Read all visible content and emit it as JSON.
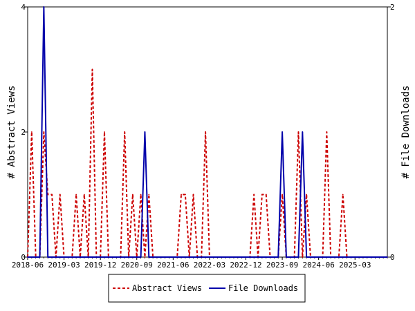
{
  "chart_data": {
    "type": "line",
    "x_start": "2018-06",
    "x_end": "2025-11",
    "xticks": [
      "2018-06",
      "2019-03",
      "2019-12",
      "2020-09",
      "2021-06",
      "2022-03",
      "2022-12",
      "2023-09",
      "2024-06",
      "2025-03"
    ],
    "ylabel_left": "# Abstract Views",
    "ylabel_right": "# File Downloads",
    "yticks_left": [
      0,
      2,
      4
    ],
    "yticks_right": [
      0,
      2
    ],
    "ylim_left": [
      0,
      4
    ],
    "ylim_right": [
      0,
      2
    ],
    "legend_position": "bottom-center",
    "grid": false,
    "series": [
      {
        "name": "Abstract Views",
        "axis": "left",
        "color": "#cc0000",
        "dash": "dashed",
        "points": [
          [
            "2018-06",
            0
          ],
          [
            "2018-07",
            2
          ],
          [
            "2018-08",
            0
          ],
          [
            "2018-09",
            0
          ],
          [
            "2018-10",
            2
          ],
          [
            "2018-11",
            1
          ],
          [
            "2018-12",
            1
          ],
          [
            "2019-01",
            0
          ],
          [
            "2019-02",
            1
          ],
          [
            "2019-03",
            0
          ],
          [
            "2019-04",
            0
          ],
          [
            "2019-05",
            0
          ],
          [
            "2019-06",
            1
          ],
          [
            "2019-07",
            0
          ],
          [
            "2019-08",
            1
          ],
          [
            "2019-09",
            0
          ],
          [
            "2019-10",
            3
          ],
          [
            "2019-11",
            0
          ],
          [
            "2019-12",
            0
          ],
          [
            "2020-01",
            2
          ],
          [
            "2020-02",
            0
          ],
          [
            "2020-03",
            0
          ],
          [
            "2020-04",
            0
          ],
          [
            "2020-05",
            0
          ],
          [
            "2020-06",
            2
          ],
          [
            "2020-07",
            0
          ],
          [
            "2020-08",
            1
          ],
          [
            "2020-09",
            0
          ],
          [
            "2020-10",
            1
          ],
          [
            "2020-11",
            0
          ],
          [
            "2020-12",
            1
          ],
          [
            "2021-01",
            0
          ],
          [
            "2021-02",
            0
          ],
          [
            "2021-03",
            0
          ],
          [
            "2021-04",
            0
          ],
          [
            "2021-05",
            0
          ],
          [
            "2021-06",
            0
          ],
          [
            "2021-07",
            0
          ],
          [
            "2021-08",
            1
          ],
          [
            "2021-09",
            1
          ],
          [
            "2021-10",
            0
          ],
          [
            "2021-11",
            1
          ],
          [
            "2021-12",
            0
          ],
          [
            "2022-01",
            0
          ],
          [
            "2022-02",
            2
          ],
          [
            "2022-03",
            0
          ],
          [
            "2022-04",
            0
          ],
          [
            "2022-05",
            0
          ],
          [
            "2022-06",
            0
          ],
          [
            "2022-07",
            0
          ],
          [
            "2022-08",
            0
          ],
          [
            "2022-09",
            0
          ],
          [
            "2022-10",
            0
          ],
          [
            "2022-11",
            0
          ],
          [
            "2022-12",
            0
          ],
          [
            "2023-01",
            0
          ],
          [
            "2023-02",
            1
          ],
          [
            "2023-03",
            0
          ],
          [
            "2023-04",
            1
          ],
          [
            "2023-05",
            1
          ],
          [
            "2023-06",
            0
          ],
          [
            "2023-07",
            0
          ],
          [
            "2023-08",
            0
          ],
          [
            "2023-09",
            1
          ],
          [
            "2023-10",
            0
          ],
          [
            "2023-11",
            0
          ],
          [
            "2023-12",
            0
          ],
          [
            "2024-01",
            2
          ],
          [
            "2024-02",
            0
          ],
          [
            "2024-03",
            1
          ],
          [
            "2024-04",
            0
          ],
          [
            "2024-05",
            0
          ],
          [
            "2024-06",
            0
          ],
          [
            "2024-07",
            0
          ],
          [
            "2024-08",
            2
          ],
          [
            "2024-09",
            0
          ],
          [
            "2024-10",
            0
          ],
          [
            "2024-11",
            0
          ],
          [
            "2024-12",
            1
          ],
          [
            "2025-01",
            0
          ],
          [
            "2025-02",
            0
          ],
          [
            "2025-03",
            0
          ],
          [
            "2025-04",
            0
          ],
          [
            "2025-05",
            0
          ],
          [
            "2025-06",
            0
          ],
          [
            "2025-07",
            0
          ],
          [
            "2025-08",
            0
          ],
          [
            "2025-09",
            0
          ],
          [
            "2025-10",
            0
          ],
          [
            "2025-11",
            0
          ]
        ]
      },
      {
        "name": "File Downloads",
        "axis": "right",
        "color": "#0000aa",
        "dash": "solid",
        "points": [
          [
            "2018-06",
            0
          ],
          [
            "2018-07",
            0
          ],
          [
            "2018-08",
            0
          ],
          [
            "2018-09",
            0
          ],
          [
            "2018-10",
            2
          ],
          [
            "2018-11",
            0
          ],
          [
            "2018-12",
            0
          ],
          [
            "2019-01",
            0
          ],
          [
            "2019-02",
            0
          ],
          [
            "2019-03",
            0
          ],
          [
            "2019-04",
            0
          ],
          [
            "2019-05",
            0
          ],
          [
            "2019-06",
            0
          ],
          [
            "2019-07",
            0
          ],
          [
            "2019-08",
            0
          ],
          [
            "2019-09",
            0
          ],
          [
            "2019-10",
            0
          ],
          [
            "2019-11",
            0
          ],
          [
            "2019-12",
            0
          ],
          [
            "2020-01",
            0
          ],
          [
            "2020-02",
            0
          ],
          [
            "2020-03",
            0
          ],
          [
            "2020-04",
            0
          ],
          [
            "2020-05",
            0
          ],
          [
            "2020-06",
            0
          ],
          [
            "2020-07",
            0
          ],
          [
            "2020-08",
            0
          ],
          [
            "2020-09",
            0
          ],
          [
            "2020-10",
            0
          ],
          [
            "2020-11",
            1
          ],
          [
            "2020-12",
            0
          ],
          [
            "2021-01",
            0
          ],
          [
            "2021-02",
            0
          ],
          [
            "2021-03",
            0
          ],
          [
            "2021-04",
            0
          ],
          [
            "2021-05",
            0
          ],
          [
            "2021-06",
            0
          ],
          [
            "2021-07",
            0
          ],
          [
            "2021-08",
            0
          ],
          [
            "2021-09",
            0
          ],
          [
            "2021-10",
            0
          ],
          [
            "2021-11",
            0
          ],
          [
            "2021-12",
            0
          ],
          [
            "2022-01",
            0
          ],
          [
            "2022-02",
            0
          ],
          [
            "2022-03",
            0
          ],
          [
            "2022-04",
            0
          ],
          [
            "2022-05",
            0
          ],
          [
            "2022-06",
            0
          ],
          [
            "2022-07",
            0
          ],
          [
            "2022-08",
            0
          ],
          [
            "2022-09",
            0
          ],
          [
            "2022-10",
            0
          ],
          [
            "2022-11",
            0
          ],
          [
            "2022-12",
            0
          ],
          [
            "2023-01",
            0
          ],
          [
            "2023-02",
            0
          ],
          [
            "2023-03",
            0
          ],
          [
            "2023-04",
            0
          ],
          [
            "2023-05",
            0
          ],
          [
            "2023-06",
            0
          ],
          [
            "2023-07",
            0
          ],
          [
            "2023-08",
            0
          ],
          [
            "2023-09",
            1
          ],
          [
            "2023-10",
            0
          ],
          [
            "2023-11",
            0
          ],
          [
            "2023-12",
            0
          ],
          [
            "2024-01",
            0
          ],
          [
            "2024-02",
            1
          ],
          [
            "2024-03",
            0
          ],
          [
            "2024-04",
            0
          ],
          [
            "2024-05",
            0
          ],
          [
            "2024-06",
            0
          ],
          [
            "2024-07",
            0
          ],
          [
            "2024-08",
            0
          ],
          [
            "2024-09",
            0
          ],
          [
            "2024-10",
            0
          ],
          [
            "2024-11",
            0
          ],
          [
            "2024-12",
            0
          ],
          [
            "2025-01",
            0
          ],
          [
            "2025-02",
            0
          ],
          [
            "2025-03",
            0
          ],
          [
            "2025-04",
            0
          ],
          [
            "2025-05",
            0
          ],
          [
            "2025-06",
            0
          ],
          [
            "2025-07",
            0
          ],
          [
            "2025-08",
            0
          ],
          [
            "2025-09",
            0
          ],
          [
            "2025-10",
            0
          ],
          [
            "2025-11",
            0
          ]
        ]
      }
    ]
  }
}
